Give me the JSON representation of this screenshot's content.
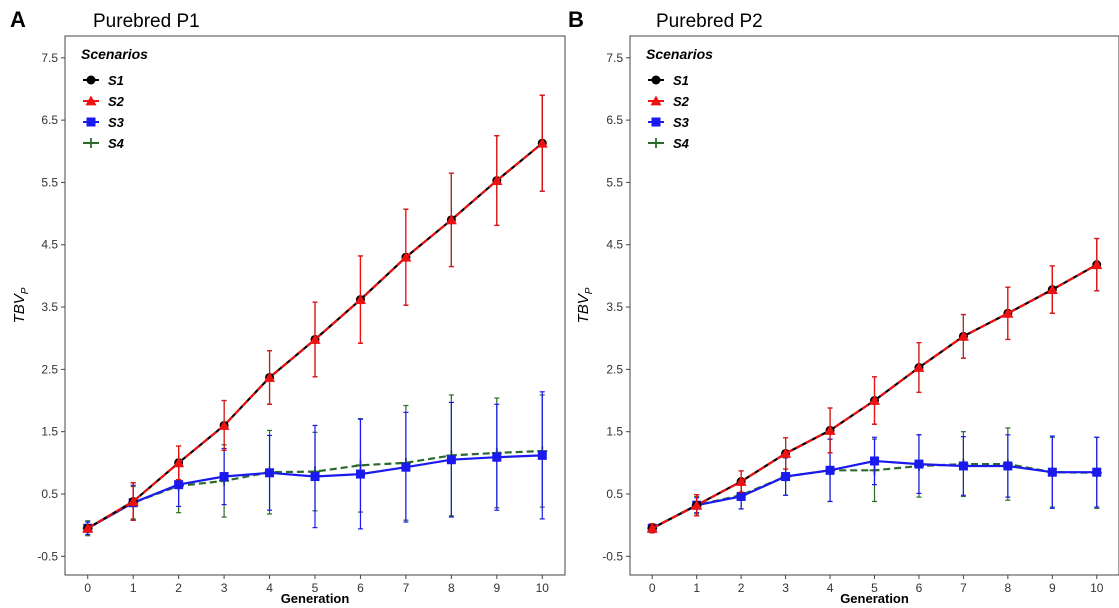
{
  "chart_data": [
    {
      "type": "line",
      "panel_letter": "A",
      "title": "Purebred P1",
      "xlabel": "Generation",
      "ylabel": "TBV",
      "ylabel_sub": "P",
      "xlim": [
        -0.5,
        10.5
      ],
      "ylim": [
        -0.8,
        7.85
      ],
      "x_ticks": [
        0,
        1,
        2,
        3,
        4,
        5,
        6,
        7,
        8,
        9,
        10
      ],
      "y_ticks": [
        -0.5,
        0.5,
        1.5,
        2.5,
        3.5,
        4.5,
        5.5,
        6.5,
        7.5
      ],
      "y_tick_labels": [
        "-0.5",
        "0.5",
        "1.5",
        "2.5",
        "3.5",
        "4.5",
        "5.5",
        "6.5",
        "7.5"
      ],
      "grid": false,
      "legend": {
        "title": "Scenarios",
        "position": "top-left"
      },
      "x": [
        0,
        1,
        2,
        3,
        4,
        5,
        6,
        7,
        8,
        9,
        10
      ],
      "series": [
        {
          "name": "S1",
          "color": "#000000",
          "marker": "circle",
          "dash": "solid",
          "values": [
            -0.05,
            0.38,
            1.0,
            1.6,
            2.37,
            2.98,
            3.62,
            4.3,
            4.9,
            5.53,
            6.13
          ],
          "err": [
            0,
            0.3,
            0.27,
            0.4,
            0.43,
            0.6,
            0.7,
            0.77,
            0.75,
            0.72,
            0.77
          ]
        },
        {
          "name": "S2",
          "color": "#ee1111",
          "marker": "triangle",
          "dash": "dashed",
          "values": [
            -0.05,
            0.38,
            1.0,
            1.6,
            2.37,
            2.98,
            3.62,
            4.3,
            4.9,
            5.53,
            6.13
          ],
          "err": [
            0,
            0.3,
            0.27,
            0.4,
            0.43,
            0.6,
            0.7,
            0.77,
            0.75,
            0.72,
            0.77
          ]
        },
        {
          "name": "S3",
          "color": "#1a1aee",
          "marker": "square",
          "dash": "solid",
          "values": [
            -0.05,
            0.36,
            0.65,
            0.78,
            0.84,
            0.78,
            0.82,
            0.93,
            1.05,
            1.09,
            1.12
          ],
          "err": [
            0.1,
            0.28,
            0.35,
            0.45,
            0.6,
            0.82,
            0.88,
            0.88,
            0.92,
            0.85,
            1.02
          ]
        },
        {
          "name": "S4",
          "color": "#2a6a2a",
          "marker": "plus",
          "dash": "dashed",
          "values": [
            -0.05,
            0.36,
            0.63,
            0.71,
            0.85,
            0.86,
            0.96,
            1.0,
            1.12,
            1.16,
            1.19
          ],
          "err": [
            0.12,
            0.26,
            0.43,
            0.58,
            0.67,
            0.63,
            0.75,
            0.92,
            0.97,
            0.88,
            0.9
          ]
        }
      ]
    },
    {
      "type": "line",
      "panel_letter": "B",
      "title": "Purebred P2",
      "xlabel": "Generation",
      "ylabel": "TBV",
      "ylabel_sub": "P",
      "xlim": [
        -0.5,
        10.5
      ],
      "ylim": [
        -0.8,
        7.85
      ],
      "x_ticks": [
        0,
        1,
        2,
        3,
        4,
        5,
        6,
        7,
        8,
        9,
        10
      ],
      "y_ticks": [
        -0.5,
        0.5,
        1.5,
        2.5,
        3.5,
        4.5,
        5.5,
        6.5,
        7.5
      ],
      "y_tick_labels": [
        "-0.5",
        "0.5",
        "1.5",
        "2.5",
        "3.5",
        "4.5",
        "5.5",
        "6.5",
        "7.5"
      ],
      "grid": false,
      "legend": {
        "title": "Scenarios",
        "position": "top-left"
      },
      "x": [
        0,
        1,
        2,
        3,
        4,
        5,
        6,
        7,
        8,
        9,
        10
      ],
      "series": [
        {
          "name": "S1",
          "color": "#000000",
          "marker": "circle",
          "dash": "solid",
          "values": [
            -0.05,
            0.32,
            0.7,
            1.15,
            1.52,
            2.0,
            2.53,
            3.03,
            3.4,
            3.78,
            4.18
          ],
          "err": [
            0.07,
            0.17,
            0.17,
            0.25,
            0.36,
            0.38,
            0.4,
            0.35,
            0.42,
            0.38,
            0.42
          ]
        },
        {
          "name": "S2",
          "color": "#ee1111",
          "marker": "triangle",
          "dash": "dashed",
          "values": [
            -0.05,
            0.32,
            0.7,
            1.15,
            1.52,
            2.0,
            2.53,
            3.03,
            3.4,
            3.78,
            4.18
          ],
          "err": [
            0.07,
            0.17,
            0.17,
            0.25,
            0.36,
            0.38,
            0.4,
            0.35,
            0.42,
            0.38,
            0.42
          ]
        },
        {
          "name": "S3",
          "color": "#1a1aee",
          "marker": "square",
          "dash": "solid",
          "values": [
            -0.05,
            0.32,
            0.46,
            0.78,
            0.88,
            1.03,
            0.98,
            0.95,
            0.95,
            0.85,
            0.85
          ],
          "err": [
            0.07,
            0.12,
            0.2,
            0.3,
            0.5,
            0.38,
            0.47,
            0.47,
            0.5,
            0.58,
            0.56
          ]
        },
        {
          "name": "S4",
          "color": "#2a6a2a",
          "marker": "plus",
          "dash": "dashed",
          "values": [
            -0.05,
            0.32,
            0.48,
            0.78,
            0.88,
            0.88,
            0.95,
            0.98,
            0.98,
            0.85,
            0.84
          ],
          "err": [
            0.07,
            0.14,
            0.22,
            0.3,
            0.5,
            0.5,
            0.5,
            0.52,
            0.58,
            0.56,
            0.57
          ]
        }
      ]
    }
  ]
}
